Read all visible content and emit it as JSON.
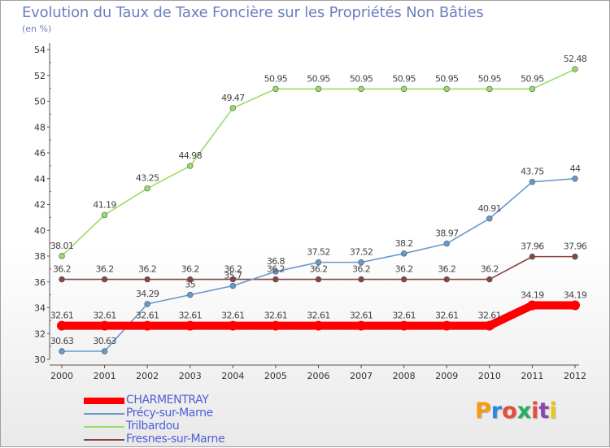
{
  "header": {
    "title": "Evolution du Taux de Taxe Foncière sur les Propriétés Non Bâties",
    "unit": "(en %)"
  },
  "logo": {
    "text": "Proxiti",
    "colors": [
      "#f39c12",
      "#2e86de",
      "#e74c3c",
      "#27ae60",
      "#e74c3c",
      "#8e44ad",
      "#f1c40f"
    ]
  },
  "chart_data": {
    "type": "line",
    "x": [
      "2000",
      "2001",
      "2002",
      "2003",
      "2004",
      "2005",
      "2006",
      "2007",
      "2008",
      "2009",
      "2010",
      "2011",
      "2012"
    ],
    "ylim": [
      30,
      54
    ],
    "yticks": [
      "30",
      "32",
      "34",
      "36",
      "38",
      "40",
      "42",
      "44",
      "46",
      "48",
      "50",
      "52",
      "54"
    ],
    "grid": false,
    "legend_position": "bottom-left",
    "series": [
      {
        "name": "CHARMENTRAY",
        "color": "#ff0000",
        "values": [
          32.61,
          32.61,
          32.61,
          32.61,
          32.61,
          32.61,
          32.61,
          32.61,
          32.61,
          32.61,
          32.61,
          34.19,
          34.19
        ],
        "labels": [
          "32.61",
          "32.61",
          "32.61",
          "32.61",
          "32.61",
          "32.61",
          "32.61",
          "32.61",
          "32.61",
          "32.61",
          "32.61",
          "34.19",
          "34.19"
        ]
      },
      {
        "name": "Précy-sur-Marne",
        "color": "#6699cc",
        "values": [
          30.63,
          30.63,
          34.29,
          35,
          35.7,
          36.8,
          37.52,
          37.52,
          38.2,
          38.97,
          40.91,
          43.75,
          44
        ],
        "labels": [
          "30.63",
          "30.63",
          "34.29",
          "35",
          "35.7",
          "36.8",
          "37.52",
          "37.52",
          "38.2",
          "38.97",
          "40.91",
          "43.75",
          "44"
        ]
      },
      {
        "name": "Trilbardou",
        "color": "#99dd66",
        "values": [
          38.01,
          41.19,
          43.25,
          44.98,
          49.47,
          50.95,
          50.95,
          50.95,
          50.95,
          50.95,
          50.95,
          50.95,
          52.48
        ],
        "labels": [
          "38.01",
          "41.19",
          "43.25",
          "44.98",
          "49.47",
          "50.95",
          "50.95",
          "50.95",
          "50.95",
          "50.95",
          "50.95",
          "50.95",
          "52.48"
        ]
      },
      {
        "name": "Fresnes-sur-Marne",
        "color": "#884444",
        "values": [
          36.2,
          36.2,
          36.2,
          36.2,
          36.2,
          36.2,
          36.2,
          36.2,
          36.2,
          36.2,
          36.2,
          37.96,
          37.96
        ],
        "labels": [
          "36.2",
          "36.2",
          "36.2",
          "36.2",
          "36.2",
          "36.2",
          "36.2",
          "36.2",
          "36.2",
          "36.2",
          "36.2",
          "37.96",
          "37.96"
        ]
      }
    ]
  }
}
